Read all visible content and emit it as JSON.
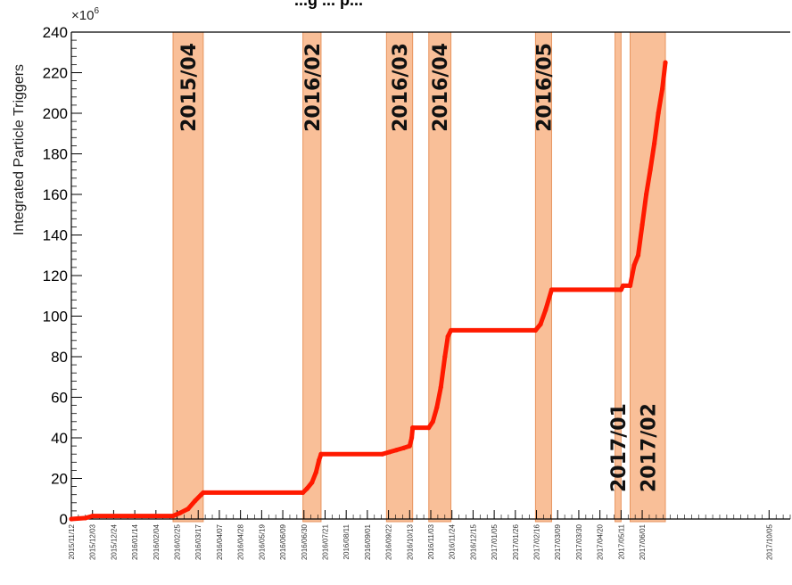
{
  "chart_data": {
    "type": "line",
    "title": "...g ... p...",
    "ylabel": "Integrated Particle Triggers",
    "y_multiplier": "×10",
    "y_multiplier_exp": "6",
    "ylim": [
      0,
      240
    ],
    "yticks": [
      "0",
      "20",
      "40",
      "60",
      "80",
      "100",
      "120",
      "140",
      "160",
      "180",
      "200",
      "220",
      "240"
    ],
    "xlim": [
      "2015/11/12",
      "2017/10/26"
    ],
    "xticks": [
      "2015/11/12",
      "2015/12/03",
      "2015/12/24",
      "2016/01/14",
      "2016/02/04",
      "2016/02/25",
      "2016/03/17",
      "2016/04/07",
      "2016/04/28",
      "2016/05/19",
      "2016/06/09",
      "2016/06/30",
      "2016/07/21",
      "2016/08/11",
      "2016/09/01",
      "2016/09/22",
      "2016/10/13",
      "2016/11/03",
      "2016/11/24",
      "2016/12/15",
      "2017/01/05",
      "2017/01/26",
      "2017/02/16",
      "2017/03/09",
      "2017/03/30",
      "2017/04/20",
      "2017/05/11",
      "2017/06/01",
      "2017/10/05"
    ],
    "series_color": "#ff1a00",
    "band_color": "#f9bf98",
    "band_edge": "#e8955f",
    "bands": [
      {
        "label": "2015/04",
        "start": "2016/02/21",
        "end": "2016/03/22"
      },
      {
        "label": "2016/02",
        "start": "2016/06/29",
        "end": "2016/07/17"
      },
      {
        "label": "2016/03",
        "start": "2016/09/20",
        "end": "2016/10/16"
      },
      {
        "label": "2016/04",
        "start": "2016/11/01",
        "end": "2016/11/23"
      },
      {
        "label": "2016/05",
        "start": "2017/02/15",
        "end": "2017/03/03"
      },
      {
        "label": "2017/01",
        "start": "2017/05/05",
        "end": "2017/05/11"
      },
      {
        "label": "2017/02",
        "start": "2017/05/20",
        "end": "2017/06/24"
      }
    ],
    "series": [
      {
        "x": [
          "2015/11/12",
          "2015/11/26",
          "2015/12/03",
          "2016/02/21",
          "2016/02/28",
          "2016/03/07",
          "2016/03/14",
          "2016/03/20",
          "2016/03/22",
          "2016/06/29",
          "2016/07/03",
          "2016/07/08",
          "2016/07/12",
          "2016/07/15",
          "2016/07/17",
          "2016/09/16",
          "2016/09/23",
          "2016/09/30",
          "2016/10/07",
          "2016/10/13",
          "2016/10/15",
          "2016/10/16",
          "2016/11/01",
          "2016/11/05",
          "2016/11/09",
          "2016/11/13",
          "2016/11/17",
          "2016/11/20",
          "2016/11/23",
          "2017/02/15",
          "2017/02/20",
          "2017/02/25",
          "2017/03/03",
          "2017/05/11",
          "2017/05/13",
          "2017/05/20",
          "2017/05/24",
          "2017/05/28",
          "2017/06/01",
          "2017/06/05",
          "2017/06/09",
          "2017/06/13",
          "2017/06/17",
          "2017/06/21",
          "2017/06/24"
        ],
        "y": [
          0,
          0.5,
          1.5,
          1.5,
          3,
          5,
          9,
          12,
          13,
          13,
          15,
          18,
          23,
          29,
          32,
          32,
          33,
          34,
          35,
          36,
          40,
          45,
          45,
          48,
          55,
          65,
          80,
          90,
          93,
          93,
          96,
          103,
          113,
          113,
          115,
          115,
          125,
          130,
          145,
          160,
          172,
          185,
          200,
          212,
          225
        ]
      }
    ]
  }
}
